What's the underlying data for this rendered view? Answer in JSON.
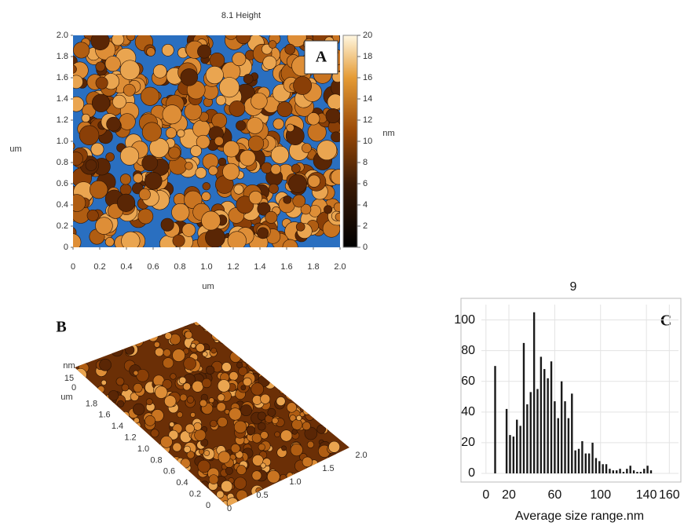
{
  "chart_data": [
    {
      "type": "heatmap",
      "title": "8.1 Height",
      "panel": "A",
      "xlabel": "um",
      "ylabel": "um",
      "colorbar_label": "nm",
      "xlim": [
        0,
        2
      ],
      "xticks": [
        0,
        0.2,
        0.4,
        0.6,
        0.8,
        {
          "value": 1,
          "label": "1.0"
        },
        1.2,
        1.4,
        1.6,
        1.8,
        {
          "value": 2,
          "label": "2.0"
        }
      ],
      "ylim": [
        0,
        2
      ],
      "yticks": [
        0,
        0.2,
        0.4,
        0.6,
        0.8,
        {
          "value": 1,
          "label": "1.0"
        },
        1.2,
        1.4,
        1.6,
        1.8,
        {
          "value": 2,
          "label": "2.0"
        }
      ],
      "clim": [
        0,
        20
      ],
      "cticks": [
        0,
        2,
        4,
        6,
        8,
        10,
        12,
        14,
        16,
        18,
        20
      ]
    },
    {
      "type": "surface",
      "panel": "B",
      "zlabel": "nm",
      "ylabel": "um",
      "zlim": [
        0,
        15
      ],
      "zticks": [
        0,
        15
      ],
      "ylim": [
        0,
        2
      ],
      "yticks": [
        0,
        0.2,
        0.4,
        0.6,
        0.8,
        {
          "value": 1,
          "label": "1.0"
        },
        1.2,
        1.4,
        1.6,
        1.8
      ],
      "xlim": [
        0,
        2
      ],
      "xticks": [
        0,
        0.5,
        {
          "value": 1,
          "label": "1.0"
        },
        1.5,
        {
          "value": 2,
          "label": "2.0"
        }
      ]
    },
    {
      "type": "bar",
      "title": "9",
      "panel": "C",
      "xlabel": "Average size range.nm",
      "color": "#1a1a1a",
      "grid": true,
      "xlim": [
        -4,
        168
      ],
      "xticks": [
        0,
        20,
        60,
        100,
        140,
        160
      ],
      "ylim": [
        0,
        110
      ],
      "yticks": [
        0,
        20,
        40,
        60,
        80,
        100
      ],
      "x": [
        8,
        18,
        21,
        24,
        27,
        30,
        33,
        36,
        39,
        42,
        45,
        48,
        51,
        54,
        57,
        60,
        63,
        66,
        69,
        72,
        75,
        78,
        81,
        84,
        87,
        90,
        93,
        96,
        99,
        102,
        105,
        108,
        111,
        114,
        117,
        120,
        123,
        126,
        129,
        132,
        135,
        138,
        141,
        144
      ],
      "values": [
        70,
        42,
        25,
        24,
        35,
        31,
        85,
        45,
        53,
        105,
        55,
        76,
        68,
        62,
        73,
        47,
        36,
        60,
        47,
        36,
        52,
        15,
        16,
        21,
        13,
        13,
        20,
        10,
        8,
        6,
        6,
        3,
        2,
        2,
        3,
        1,
        3,
        5,
        2,
        1,
        1,
        3,
        5,
        2
      ]
    }
  ]
}
